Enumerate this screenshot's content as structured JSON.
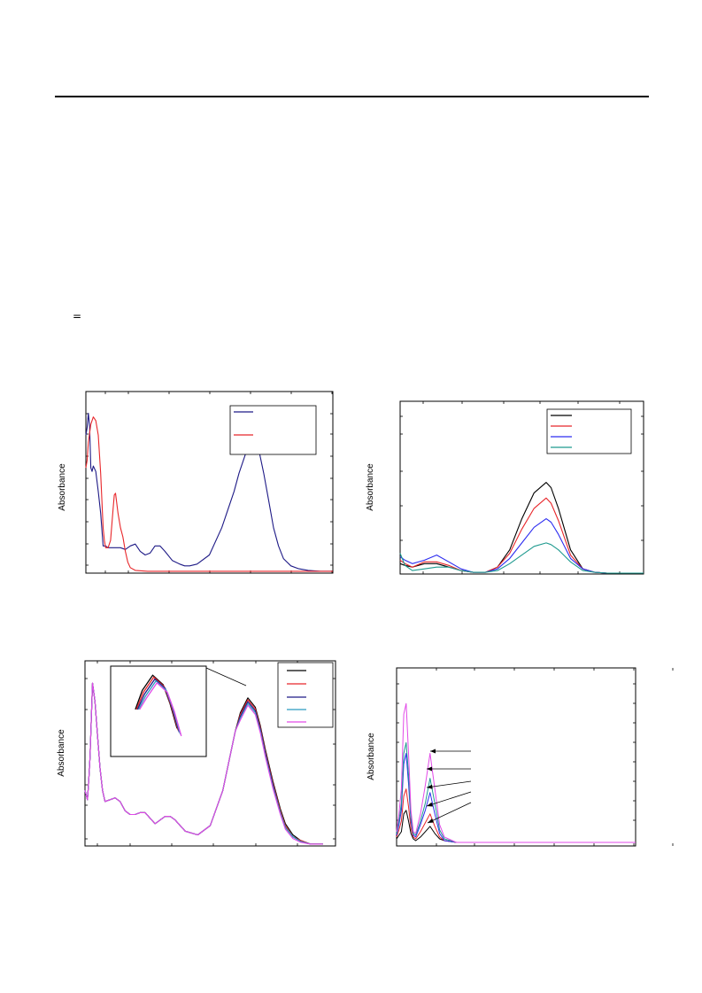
{
  "header": {
    "symbol": "="
  },
  "colors": {
    "black": "#000000",
    "red": "#e8262a",
    "navy": "#1e1a86",
    "blue": "#2c2cf0",
    "teal": "#1f9a8f",
    "cyan": "#2a9ac0",
    "magenta": "#e24ae8"
  },
  "chart_data": [
    {
      "id": "top-left",
      "type": "line",
      "ylabel": "Absorbance",
      "xlim": [
        0,
        100
      ],
      "ylim": [
        0,
        100
      ],
      "grid": false,
      "legend_position": "top-right",
      "series": [
        {
          "color": "#1e1a86",
          "x": [
            0,
            0.5,
            1,
            1.5,
            2,
            2.5,
            3,
            4,
            5,
            6,
            7,
            8,
            9,
            10,
            12,
            14,
            16,
            18,
            20,
            22,
            24,
            26,
            28,
            30,
            32,
            35,
            38,
            40,
            42,
            45,
            50,
            55,
            60,
            62,
            65,
            67,
            68,
            69,
            70,
            72,
            74,
            76,
            78,
            80,
            83,
            86,
            90,
            95,
            100
          ],
          "y": [
            76,
            80,
            88,
            81,
            58,
            56,
            59,
            56,
            45,
            33,
            15,
            15,
            14,
            14,
            14,
            14,
            13,
            15,
            16,
            12,
            10,
            11,
            15,
            15,
            12,
            7,
            5,
            4,
            4,
            5,
            10,
            25,
            45,
            55,
            67,
            75,
            77,
            75,
            68,
            55,
            40,
            25,
            15,
            8,
            4,
            2.5,
            1.5,
            1,
            1
          ]
        },
        {
          "color": "#e8262a",
          "x": [
            0,
            0.5,
            1,
            2,
            3,
            4,
            5,
            6,
            6.5,
            7,
            7.5,
            8,
            9,
            10,
            11,
            11.5,
            12,
            13,
            14,
            15,
            16,
            17,
            18,
            20,
            25,
            30,
            40,
            50,
            60,
            70,
            80,
            90,
            100
          ],
          "y": [
            58,
            62,
            72,
            82,
            86,
            84,
            76,
            55,
            40,
            25,
            18,
            14,
            14,
            18,
            35,
            43,
            44,
            33,
            25,
            20,
            12,
            6,
            3,
            1.5,
            1,
            1,
            1,
            1,
            1,
            1,
            1,
            1,
            1
          ]
        }
      ]
    },
    {
      "id": "top-right",
      "type": "line",
      "ylabel": "Absorbance",
      "xlim": [
        0,
        100
      ],
      "ylim": [
        0,
        100
      ],
      "grid": false,
      "legend_position": "top-right",
      "series": [
        {
          "color": "#000000",
          "x": [
            0,
            2,
            5,
            10,
            15,
            20,
            25,
            30,
            35,
            40,
            45,
            50,
            55,
            60,
            62,
            65,
            70,
            75,
            80,
            85,
            90,
            100
          ],
          "y": [
            6,
            5,
            4,
            6,
            6,
            4,
            2,
            1,
            1,
            4,
            14,
            32,
            47,
            53,
            50,
            38,
            14,
            3,
            1,
            0.5,
            0.5,
            0.5
          ]
        },
        {
          "color": "#e8262a",
          "x": [
            0,
            2,
            5,
            10,
            15,
            20,
            25,
            30,
            35,
            40,
            45,
            50,
            55,
            60,
            62,
            65,
            70,
            75,
            80,
            85,
            90,
            100
          ],
          "y": [
            8,
            6,
            4,
            7,
            7,
            5,
            2,
            1,
            1,
            4,
            12,
            26,
            38,
            44,
            41,
            31,
            11,
            3,
            1,
            0.5,
            0.5,
            0.5
          ]
        },
        {
          "color": "#2c2cf0",
          "x": [
            0,
            2,
            5,
            10,
            15,
            20,
            25,
            30,
            35,
            40,
            45,
            50,
            55,
            60,
            62,
            65,
            70,
            75,
            80,
            85,
            90,
            100
          ],
          "y": [
            10,
            8,
            6,
            8,
            11,
            7,
            3,
            1,
            1,
            3,
            9,
            18,
            27,
            32,
            30,
            23,
            9,
            3,
            1,
            0.5,
            0.5,
            0.5
          ]
        },
        {
          "color": "#1f9a8f",
          "x": [
            0,
            2,
            5,
            10,
            15,
            20,
            25,
            30,
            35,
            40,
            45,
            50,
            55,
            60,
            62,
            65,
            70,
            75,
            80,
            85,
            90,
            100
          ],
          "y": [
            12,
            5,
            2,
            3,
            4,
            4,
            2,
            1,
            1,
            2,
            6,
            11,
            16,
            18,
            17,
            14,
            7,
            2,
            1,
            0.5,
            0.5,
            0.5
          ]
        }
      ]
    },
    {
      "id": "bottom-left",
      "type": "line",
      "ylabel": "Absorbance",
      "xlim": [
        0,
        100
      ],
      "ylim": [
        0,
        100
      ],
      "grid": false,
      "legend_position": "top-right",
      "series": [
        {
          "color": "#000000",
          "x": [
            0,
            1,
            1.5,
            2,
            3,
            4,
            5,
            6,
            7,
            8,
            10,
            12,
            14,
            16,
            18,
            20,
            22,
            24,
            26,
            28,
            30,
            32,
            34,
            36,
            38,
            40,
            45,
            50,
            55,
            60,
            62,
            65,
            68,
            70,
            72,
            75,
            78,
            80,
            83,
            86,
            90,
            95
          ],
          "y": [
            30,
            25,
            35,
            48,
            88,
            78,
            60,
            42,
            30,
            24,
            25,
            26,
            24,
            19,
            17,
            17,
            18,
            18,
            15,
            12,
            14,
            16,
            16,
            14,
            11,
            8,
            6,
            11,
            30,
            62,
            72,
            80,
            75,
            65,
            52,
            35,
            20,
            12,
            6,
            3,
            1,
            1
          ]
        },
        {
          "color": "#e8262a",
          "x": [
            0,
            1,
            1.5,
            2,
            3,
            4,
            5,
            6,
            7,
            8,
            10,
            12,
            14,
            16,
            18,
            20,
            22,
            24,
            26,
            28,
            30,
            32,
            34,
            36,
            38,
            40,
            45,
            50,
            55,
            60,
            62,
            65,
            68,
            70,
            72,
            75,
            78,
            80,
            83,
            86,
            90,
            95
          ],
          "y": [
            30,
            25,
            35,
            48,
            88,
            78,
            60,
            42,
            30,
            24,
            25,
            26,
            24,
            19,
            17,
            17,
            18,
            18,
            15,
            12,
            14,
            16,
            16,
            14,
            11,
            8,
            6,
            11,
            30,
            62,
            71,
            79,
            74,
            64,
            51,
            34,
            19,
            11,
            5,
            3,
            1,
            1
          ]
        },
        {
          "color": "#1e1a86",
          "x": [
            0,
            1,
            1.5,
            2,
            3,
            4,
            5,
            6,
            7,
            8,
            10,
            12,
            14,
            16,
            18,
            20,
            22,
            24,
            26,
            28,
            30,
            32,
            34,
            36,
            38,
            40,
            45,
            50,
            55,
            60,
            62,
            65,
            68,
            70,
            72,
            75,
            78,
            80,
            83,
            86,
            90,
            95
          ],
          "y": [
            30,
            25,
            35,
            48,
            88,
            78,
            60,
            42,
            30,
            24,
            25,
            26,
            24,
            19,
            17,
            17,
            18,
            18,
            15,
            12,
            14,
            16,
            16,
            14,
            11,
            8,
            6,
            11,
            30,
            62,
            70,
            78,
            73,
            63,
            50,
            33,
            18,
            10,
            5,
            2.5,
            1,
            1
          ]
        },
        {
          "color": "#2a9ac0",
          "x": [
            0,
            1,
            1.5,
            2,
            3,
            4,
            5,
            6,
            7,
            8,
            10,
            12,
            14,
            16,
            18,
            20,
            22,
            24,
            26,
            28,
            30,
            32,
            34,
            36,
            38,
            40,
            45,
            50,
            55,
            60,
            62,
            65,
            68,
            70,
            72,
            75,
            78,
            80,
            83,
            86,
            90,
            95
          ],
          "y": [
            30,
            25,
            35,
            48,
            88,
            78,
            60,
            42,
            30,
            24,
            25,
            26,
            24,
            19,
            17,
            17,
            18,
            18,
            15,
            12,
            14,
            16,
            16,
            14,
            11,
            8,
            6,
            11,
            30,
            62,
            69,
            77,
            72,
            62,
            49,
            32,
            18,
            10,
            5,
            2.5,
            1,
            1
          ]
        },
        {
          "color": "#e24ae8",
          "x": [
            0,
            1,
            1.5,
            2,
            3,
            4,
            5,
            6,
            7,
            8,
            10,
            12,
            14,
            16,
            18,
            20,
            22,
            24,
            26,
            28,
            30,
            32,
            34,
            36,
            38,
            40,
            45,
            50,
            55,
            60,
            62,
            65,
            68,
            70,
            72,
            75,
            78,
            80,
            83,
            86,
            90,
            95
          ],
          "y": [
            30,
            25,
            35,
            48,
            88,
            78,
            60,
            42,
            30,
            24,
            25,
            26,
            24,
            19,
            17,
            17,
            18,
            18,
            15,
            12,
            14,
            16,
            16,
            14,
            11,
            8,
            6,
            11,
            30,
            62,
            68,
            76,
            71,
            61,
            48,
            31,
            17,
            9,
            4,
            2,
            1,
            1
          ]
        }
      ]
    },
    {
      "id": "bottom-right",
      "type": "line",
      "ylabel": "Absorbance",
      "xlim": [
        0,
        100
      ],
      "ylim": [
        0,
        100
      ],
      "grid": false,
      "series": [
        {
          "color": "#000000",
          "x": [
            0,
            1,
            2,
            3,
            4,
            5,
            6,
            7,
            8,
            10,
            12,
            14,
            16,
            18,
            20,
            25,
            30,
            40,
            50,
            60,
            70,
            80,
            90,
            100
          ],
          "y": [
            4,
            6,
            8,
            18,
            20,
            14,
            7,
            4,
            3,
            5,
            8,
            11,
            7,
            4,
            3,
            2,
            2,
            2,
            2,
            2,
            2,
            2,
            2,
            2
          ]
        },
        {
          "color": "#e8262a",
          "x": [
            0,
            1,
            2,
            3,
            4,
            5,
            6,
            7,
            8,
            10,
            12,
            14,
            16,
            18,
            20,
            25,
            30,
            40,
            50,
            60,
            70,
            80,
            90,
            100
          ],
          "y": [
            5,
            9,
            14,
            28,
            32,
            22,
            10,
            5,
            4,
            8,
            13,
            18,
            11,
            5,
            3,
            2,
            2,
            2,
            2,
            2,
            2,
            2,
            2,
            2
          ]
        },
        {
          "color": "#2c2cf0",
          "x": [
            0,
            1,
            2,
            3,
            4,
            5,
            6,
            7,
            8,
            10,
            12,
            14,
            16,
            18,
            20,
            25,
            30,
            40,
            50,
            60,
            70,
            80,
            90,
            100
          ],
          "y": [
            6,
            12,
            20,
            46,
            52,
            35,
            14,
            6,
            5,
            12,
            20,
            30,
            18,
            7,
            3,
            2,
            2,
            2,
            2,
            2,
            2,
            2,
            2,
            2
          ]
        },
        {
          "color": "#1f9a8f",
          "x": [
            0,
            1,
            2,
            3,
            4,
            5,
            6,
            7,
            8,
            10,
            12,
            14,
            16,
            18,
            20,
            25,
            30,
            40,
            50,
            60,
            70,
            80,
            90,
            100
          ],
          "y": [
            7,
            14,
            24,
            52,
            58,
            40,
            16,
            7,
            6,
            14,
            24,
            38,
            24,
            9,
            4,
            2,
            2,
            2,
            2,
            2,
            2,
            2,
            2,
            2
          ]
        },
        {
          "color": "#e24ae8",
          "x": [
            0,
            1,
            2,
            3,
            4,
            5,
            6,
            7,
            8,
            10,
            12,
            14,
            16,
            18,
            20,
            25,
            30,
            40,
            50,
            60,
            70,
            80,
            90,
            100
          ],
          "y": [
            8,
            18,
            32,
            74,
            80,
            52,
            20,
            8,
            7,
            18,
            34,
            52,
            32,
            12,
            5,
            2,
            2,
            2,
            2,
            2,
            2,
            2,
            2,
            2
          ]
        }
      ]
    }
  ]
}
